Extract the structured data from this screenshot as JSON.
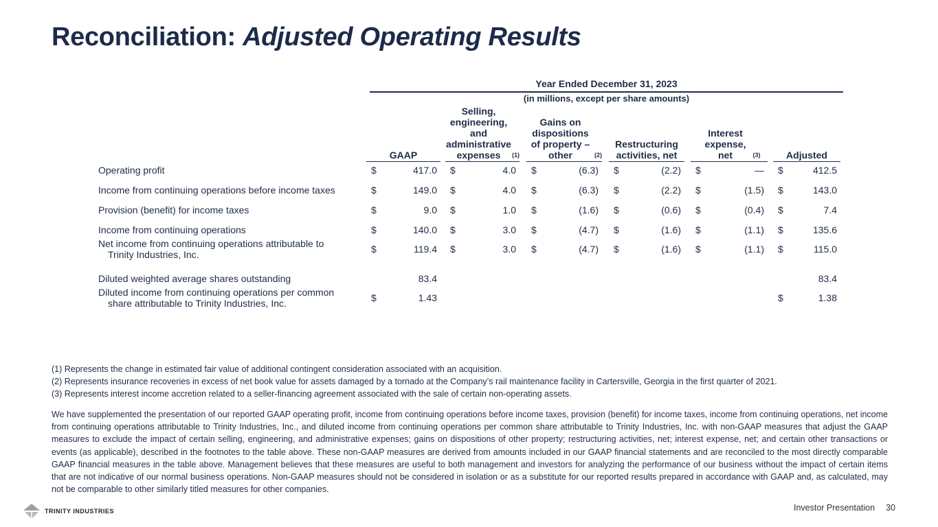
{
  "title": {
    "main": "Reconciliation: ",
    "italic": "Adjusted Operating Results"
  },
  "table": {
    "period": "Year Ended December 31, 2023",
    "units": "(in millions, except per share amounts)",
    "columns": [
      {
        "label": "GAAP",
        "note": ""
      },
      {
        "label": "Selling, engineering, and administrative expenses",
        "note": "(1)"
      },
      {
        "label": "Gains on dispositions of property – other",
        "note": "(2)"
      },
      {
        "label": "Restructuring activities, net",
        "note": ""
      },
      {
        "label": "Interest expense, net",
        "note": "(3)"
      },
      {
        "label": "Adjusted",
        "note": ""
      }
    ],
    "rows": [
      {
        "label": "Operating profit",
        "label2": "",
        "cells": [
          [
            "$",
            "417.0"
          ],
          [
            "$",
            "4.0"
          ],
          [
            "$",
            "(6.3)"
          ],
          [
            "$",
            "(2.2)"
          ],
          [
            "$",
            "—"
          ],
          [
            "$",
            "412.5"
          ]
        ]
      },
      {
        "label": "Income from continuing operations before income taxes",
        "label2": "",
        "cells": [
          [
            "$",
            "149.0"
          ],
          [
            "$",
            "4.0"
          ],
          [
            "$",
            "(6.3)"
          ],
          [
            "$",
            "(2.2)"
          ],
          [
            "$",
            "(1.5)"
          ],
          [
            "$",
            "143.0"
          ]
        ]
      },
      {
        "label": "Provision (benefit) for income taxes",
        "label2": "",
        "cells": [
          [
            "$",
            "9.0"
          ],
          [
            "$",
            "1.0"
          ],
          [
            "$",
            "(1.6)"
          ],
          [
            "$",
            "(0.6)"
          ],
          [
            "$",
            "(0.4)"
          ],
          [
            "$",
            "7.4"
          ]
        ]
      },
      {
        "label": "Income from continuing operations",
        "label2": "",
        "cells": [
          [
            "$",
            "140.0"
          ],
          [
            "$",
            "3.0"
          ],
          [
            "$",
            "(4.7)"
          ],
          [
            "$",
            "(1.6)"
          ],
          [
            "$",
            "(1.1)"
          ],
          [
            "$",
            "135.6"
          ]
        ]
      },
      {
        "label": "Net income from continuing operations attributable to",
        "label2": "Trinity Industries, Inc.",
        "cells": [
          [
            "$",
            "119.4"
          ],
          [
            "$",
            "3.0"
          ],
          [
            "$",
            "(4.7)"
          ],
          [
            "$",
            "(1.6)"
          ],
          [
            "$",
            "(1.1)"
          ],
          [
            "$",
            "115.0"
          ]
        ]
      },
      {
        "label": "Diluted weighted average shares outstanding",
        "label2": "",
        "cells": [
          [
            "",
            "83.4"
          ],
          [
            "",
            ""
          ],
          [
            "",
            ""
          ],
          [
            "",
            ""
          ],
          [
            "",
            ""
          ],
          [
            "",
            "83.4"
          ]
        ]
      },
      {
        "label": "Diluted income from continuing operations per common",
        "label2": "share attributable to Trinity Industries, Inc.",
        "cells": [
          [
            "$",
            "1.43"
          ],
          [
            "",
            ""
          ],
          [
            "",
            ""
          ],
          [
            "",
            ""
          ],
          [
            "",
            ""
          ],
          [
            "$",
            "1.38"
          ]
        ]
      }
    ]
  },
  "notes": [
    "(1) Represents the change in estimated fair value of additional contingent consideration associated with an acquisition.",
    "(2) Represents insurance recoveries in excess of net book value for assets damaged by a tornado at the Company’s rail maintenance facility in Cartersville, Georgia in the first quarter of 2021.",
    "(3) Represents interest income accretion related to a seller-financing agreement associated with the sale of certain non-operating assets."
  ],
  "paragraph": "We have supplemented the presentation of our reported GAAP operating profit, income from continuing operations before income taxes, provision (benefit) for income taxes, income from continuing operations, net income from continuing operations attributable to Trinity Industries, Inc., and diluted income from continuing operations per common share attributable to Trinity Industries, Inc. with non-GAAP measures that adjust the GAAP measures to exclude the impact of certain selling, engineering, and administrative expenses; gains on dispositions of other property; restructuring activities, net; interest expense, net; and certain other transactions or events (as applicable), described in the footnotes to the table above. These non-GAAP measures are derived from amounts included in our GAAP financial statements and are reconciled to the most directly comparable GAAP financial measures in the table above. Management believes that these measures are useful to both management and investors for analyzing the performance of our business without the impact of certain items that are not indicative of our normal business operations. Non-GAAP measures should not be considered in isolation or as a substitute for our reported results prepared in accordance with GAAP and, as calculated, may not be comparable to other similarly titled measures for other companies.",
  "footer": {
    "logo": "TRINITY INDUSTRIES",
    "label": "Investor Presentation",
    "page": "30"
  }
}
